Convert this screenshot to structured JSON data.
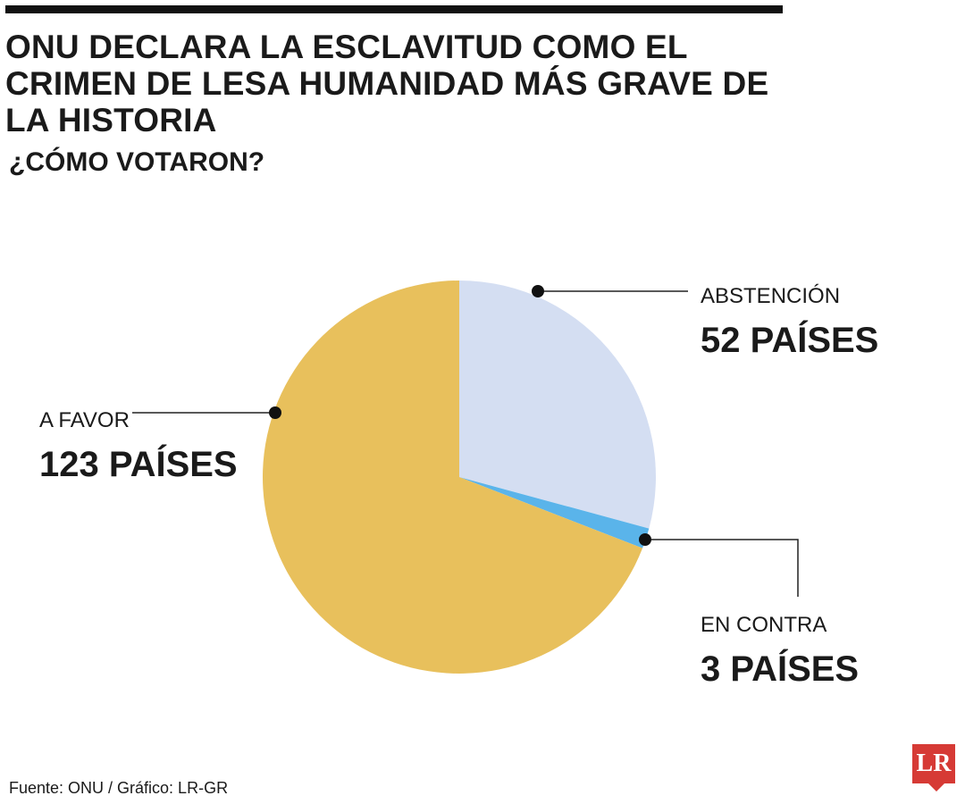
{
  "header": {
    "title": "ONU DECLARA LA ESCLAVITUD COMO EL CRIMEN DE LESA HUMANIDAD MÁS GRAVE DE LA HISTORIA",
    "subtitle": "¿CÓMO VOTARON?"
  },
  "chart_data": {
    "type": "pie",
    "title": "ONU DECLARA LA ESCLAVITUD COMO EL CRIMEN DE LESA HUMANIDAD MÁS GRAVE DE LA HISTORIA",
    "subtitle": "¿CÓMO VOTARON?",
    "slices": [
      {
        "label": "ABSTENCIÓN",
        "value": 52,
        "value_label": "52 PAÍSES",
        "color": "#d4def2"
      },
      {
        "label": "EN CONTRA",
        "value": 3,
        "value_label": "3 PAÍSES",
        "color": "#5ab4ea"
      },
      {
        "label": "A FAVOR",
        "value": 123,
        "value_label": "123 PAÍSES",
        "color": "#e8c05c"
      }
    ],
    "start_angle": "12 o'clock",
    "direction": "clockwise",
    "legend": "none (callout labels)"
  },
  "footer": {
    "source": "Fuente: ONU / Gráfico: LR-GR",
    "logo_text": "LR"
  }
}
